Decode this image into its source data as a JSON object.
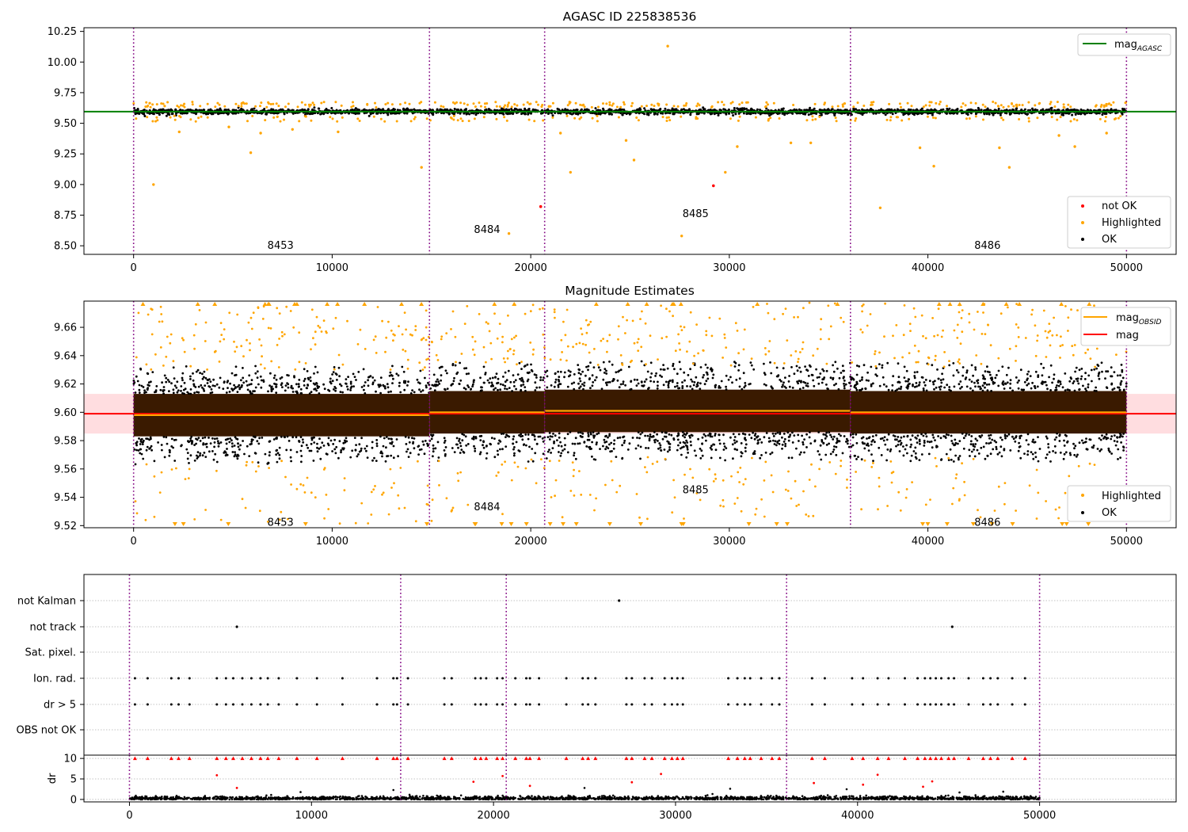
{
  "figure": {
    "panel1_title": "AGASC ID 225838536",
    "panel2_title": "Magnitude Estimates"
  },
  "colors": {
    "ok": "#000000",
    "highlighted": "#ffa500",
    "not_ok": "#ff0000",
    "mag_agasc": "#008000",
    "mag_obsid": "#ffa500",
    "mag": "#ff0000",
    "mag_band": "#ffb3ba",
    "obs_boundary": "#800080",
    "grid": "#b0b0b0"
  },
  "chart_data": [
    {
      "id": "agasc",
      "type": "scatter",
      "title": "AGASC ID 225838536",
      "xlim": [
        -2500,
        52500
      ],
      "ylim": [
        8.43,
        10.28
      ],
      "x_ticks": [
        0,
        10000,
        20000,
        30000,
        40000,
        50000
      ],
      "y_ticks": [
        8.5,
        8.75,
        9.0,
        9.25,
        9.5,
        9.75,
        10.0,
        10.25
      ],
      "y_tick_labels": [
        "8.50",
        "8.75",
        "9.00",
        "9.25",
        "9.50",
        "9.75",
        "10.00",
        "10.25"
      ],
      "obs_boundaries": [
        0,
        14900,
        20700,
        36100,
        50000
      ],
      "obsid_labels": [
        {
          "text": "8453",
          "x": 7400,
          "y": 8.5
        },
        {
          "text": "8484",
          "x": 17800,
          "y": 8.63
        },
        {
          "text": "8485",
          "x": 28300,
          "y": 8.76
        },
        {
          "text": "8486",
          "x": 43000,
          "y": 8.5
        }
      ],
      "mag_agasc": {
        "value": 9.595,
        "x": [
          -2500,
          52500
        ]
      },
      "ok_band": {
        "center": 9.595,
        "half_width": 0.03
      },
      "highlighted_points": [
        [
          1000,
          9.0
        ],
        [
          5900,
          9.26
        ],
        [
          14500,
          9.14
        ],
        [
          18900,
          8.6
        ],
        [
          22000,
          9.1
        ],
        [
          25200,
          9.2
        ],
        [
          26900,
          10.13
        ],
        [
          27600,
          8.58
        ],
        [
          29800,
          9.1
        ],
        [
          30400,
          9.31
        ],
        [
          33100,
          9.34
        ],
        [
          34100,
          9.34
        ],
        [
          37600,
          8.81
        ],
        [
          39600,
          9.3
        ],
        [
          40300,
          9.15
        ],
        [
          43600,
          9.3
        ],
        [
          44100,
          9.14
        ],
        [
          46600,
          9.4
        ],
        [
          47400,
          9.31
        ],
        [
          49000,
          9.42
        ],
        [
          24800,
          9.36
        ],
        [
          21500,
          9.42
        ],
        [
          2300,
          9.43
        ],
        [
          6400,
          9.42
        ],
        [
          8000,
          9.45
        ],
        [
          10300,
          9.43
        ],
        [
          4800,
          9.47
        ]
      ],
      "not_ok_points": [
        [
          20500,
          8.82
        ],
        [
          29200,
          8.99
        ]
      ],
      "legends": [
        {
          "position": "top-right",
          "entries": [
            "mag_AGASC"
          ]
        },
        {
          "position": "bottom-right",
          "entries": [
            "not OK",
            "Highlighted",
            "OK"
          ]
        }
      ]
    },
    {
      "id": "estimates",
      "type": "scatter",
      "title": "Magnitude Estimates",
      "xlim": [
        -2500,
        52500
      ],
      "ylim": [
        9.5185,
        9.6785
      ],
      "x_ticks": [
        0,
        10000,
        20000,
        30000,
        40000,
        50000
      ],
      "y_ticks": [
        9.52,
        9.54,
        9.56,
        9.58,
        9.6,
        9.62,
        9.64,
        9.66
      ],
      "y_tick_labels": [
        "9.52",
        "9.54",
        "9.56",
        "9.58",
        "9.60",
        "9.62",
        "9.64",
        "9.66"
      ],
      "obs_boundaries": [
        0,
        14900,
        20700,
        36100,
        50000
      ],
      "obsid_labels": [
        {
          "text": "8453",
          "x": 7400,
          "y": 9.522
        },
        {
          "text": "8484",
          "x": 17800,
          "y": 9.533
        },
        {
          "text": "8485",
          "x": 28300,
          "y": 9.545
        },
        {
          "text": "8486",
          "x": 43000,
          "y": 9.522
        }
      ],
      "mag": {
        "value": 9.599,
        "x": [
          -2500,
          52500
        ],
        "band": [
          9.585,
          9.613
        ]
      },
      "mag_obsid": [
        {
          "x0": 0,
          "x1": 14900,
          "y": 9.598
        },
        {
          "x0": 14900,
          "x1": 20700,
          "y": 9.6
        },
        {
          "x0": 20700,
          "x1": 36100,
          "y": 9.601
        },
        {
          "x0": 36100,
          "x1": 50000,
          "y": 9.6
        }
      ],
      "segment_spread": {
        "core": 0.015,
        "black": 0.03,
        "orange": 0.08
      },
      "legends": [
        {
          "position": "top-right",
          "entries": [
            "mag_OBSID",
            "mag"
          ]
        },
        {
          "position": "bottom-right",
          "entries": [
            "Highlighted",
            "OK"
          ]
        }
      ]
    },
    {
      "id": "flags",
      "type": "scatter",
      "xlim": [
        -2500,
        57500
      ],
      "categories": [
        "OBS not OK",
        "dr > 5",
        "Ion. rad.",
        "Sat. pixel.",
        "not track",
        "not Kalman"
      ],
      "obs_boundaries": [
        0,
        14900,
        20700,
        36100,
        50000
      ],
      "not_kalman_x": [
        26900
      ],
      "not_track_x": [
        5900,
        45200
      ],
      "flag_x": [
        300,
        1000,
        2300,
        2700,
        3300,
        4800,
        5300,
        5700,
        6200,
        6700,
        7200,
        7600,
        8200,
        9200,
        10300,
        11700,
        13600,
        14500,
        14700,
        15300,
        17300,
        17700,
        19000,
        19300,
        19600,
        20200,
        20500,
        21200,
        21800,
        22000,
        22500,
        24000,
        24900,
        25200,
        25600,
        27300,
        27600,
        28300,
        28700,
        29400,
        29800,
        30100,
        30400,
        32900,
        33400,
        33800,
        34100,
        34700,
        35300,
        35700,
        37500,
        38200,
        39700,
        40300,
        41100,
        41700,
        42600,
        43300,
        43700,
        44000,
        44300,
        44600,
        45000,
        45300,
        46100,
        46900,
        47300,
        47700,
        48500,
        49200
      ]
    },
    {
      "id": "dr",
      "type": "scatter",
      "xlim": [
        -2500,
        57500
      ],
      "ylim": [
        -0.6,
        10.8
      ],
      "ylabel": "dr",
      "x_ticks": [
        0,
        10000,
        20000,
        30000,
        40000,
        50000
      ],
      "y_ticks": [
        0,
        5,
        10
      ],
      "y_tick_labels": [
        "0",
        "5",
        "10"
      ],
      "obs_boundaries": [
        0,
        14900,
        20700,
        36100,
        50000
      ],
      "red_mid_points": [
        [
          4800,
          5.9
        ],
        [
          5900,
          2.8
        ],
        [
          18900,
          4.3
        ],
        [
          20500,
          5.7
        ],
        [
          22000,
          3.3
        ],
        [
          27600,
          4.2
        ],
        [
          29200,
          6.2
        ],
        [
          37600,
          4.0
        ],
        [
          40300,
          3.6
        ],
        [
          41100,
          6.0
        ],
        [
          43600,
          3.1
        ],
        [
          44100,
          4.4
        ]
      ],
      "black_high_points": [
        [
          14500,
          2.3
        ],
        [
          25000,
          2.8
        ],
        [
          33000,
          2.6
        ],
        [
          39400,
          2.5
        ],
        [
          45600,
          1.7
        ],
        [
          9400,
          1.8
        ],
        [
          48000,
          1.9
        ]
      ]
    }
  ]
}
